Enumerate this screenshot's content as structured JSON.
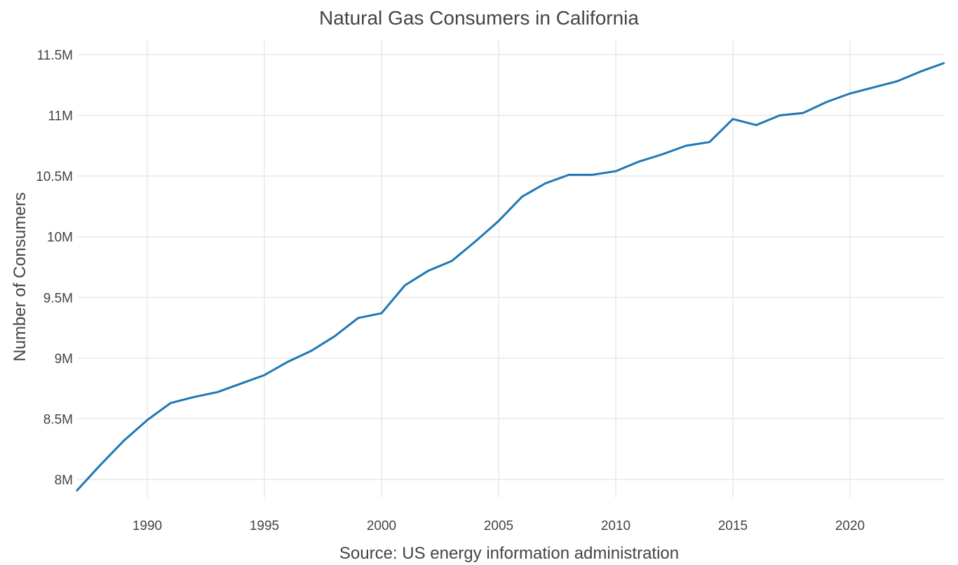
{
  "chart_data": {
    "type": "line",
    "title": "Natural Gas Consumers in California",
    "xlabel": "Source: US energy information administration",
    "ylabel": "Number of Consumers",
    "xlim": [
      1987,
      2024
    ],
    "ylim": [
      7.9,
      11.6
    ],
    "grid": true,
    "x_ticks": [
      1990,
      1995,
      2000,
      2005,
      2010,
      2015,
      2020
    ],
    "x_tick_labels": [
      "1990",
      "1995",
      "2000",
      "2005",
      "2010",
      "2015",
      "2020"
    ],
    "y_ticks": [
      8,
      8.5,
      9,
      9.5,
      10,
      10.5,
      11,
      11.5
    ],
    "y_tick_labels": [
      "8M",
      "8.5M",
      "9M",
      "9.5M",
      "10M",
      "10.5M",
      "11M",
      "11.5M"
    ],
    "series": [
      {
        "name": "Consumers",
        "color": "#1f77b4",
        "x": [
          1987,
          1988,
          1989,
          1990,
          1991,
          1992,
          1993,
          1994,
          1995,
          1996,
          1997,
          1998,
          1999,
          2000,
          2001,
          2002,
          2003,
          2004,
          2005,
          2006,
          2007,
          2008,
          2009,
          2010,
          2011,
          2012,
          2013,
          2014,
          2015,
          2016,
          2017,
          2018,
          2019,
          2020,
          2021,
          2022,
          2023,
          2024
        ],
        "y": [
          7.91,
          8.12,
          8.32,
          8.49,
          8.63,
          8.68,
          8.72,
          8.79,
          8.86,
          8.97,
          9.06,
          9.18,
          9.33,
          9.37,
          9.6,
          9.72,
          9.8,
          9.96,
          10.13,
          10.33,
          10.44,
          10.51,
          10.51,
          10.54,
          10.62,
          10.68,
          10.75,
          10.78,
          10.97,
          10.92,
          11.0,
          11.02,
          11.11,
          11.18,
          11.23,
          11.28,
          11.36,
          11.43
        ]
      }
    ]
  }
}
